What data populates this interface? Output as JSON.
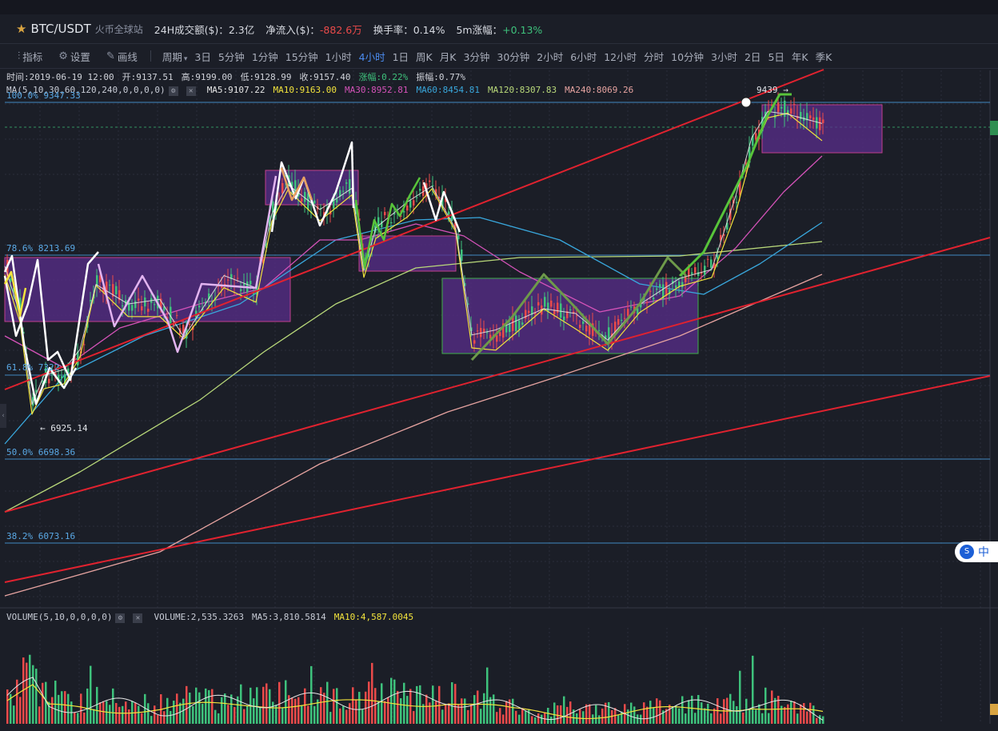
{
  "header": {
    "pair": "BTC/USDT",
    "exchange": "火币全球站",
    "volume_label": "24H成交额($)：",
    "volume_value": "2.3亿",
    "inflow_label": "净流入($)：",
    "inflow_value": "-882.6万",
    "turnover_label": "换手率：",
    "turnover_value": "0.14%",
    "change5m_label": "5m涨幅：",
    "change5m_value": "+0.13%"
  },
  "toolbar": {
    "indicator": "指标",
    "settings": "设置",
    "draw": "画线",
    "period_label": "周期",
    "periods": [
      "3日",
      "5分钟",
      "1分钟",
      "15分钟",
      "1小时",
      "4小时",
      "1日",
      "周K",
      "月K",
      "3分钟",
      "30分钟",
      "2小时",
      "6小时",
      "12小时",
      "分时",
      "10分钟",
      "3小时",
      "2日",
      "5日",
      "年K",
      "季K"
    ],
    "active_period": "4小时"
  },
  "info": {
    "time": "时间:2019-06-19 12:00",
    "open": "开:9137.51",
    "high": "高:9199.00",
    "low": "低:9128.99",
    "close": "收:9157.40",
    "change": "涨幅:0.22%",
    "amplitude": "振幅:0.77%"
  },
  "ma": {
    "label": "MA(5,10,30,60,120,240,0,0,0,0)",
    "ma5": "MA5:9107.22",
    "ma10": "MA10:9163.00",
    "ma30": "MA30:8952.81",
    "ma60": "MA60:8454.81",
    "ma120": "MA120:8307.83",
    "ma240": "MA240:8069.26"
  },
  "volume": {
    "label": "VOLUME(5,10,0,0,0,0)",
    "value": "VOLUME:2,535.3263",
    "ma5": "MA5:3,810.5814",
    "ma10": "MA10:4,587.0045"
  },
  "fib_levels": [
    {
      "label": "100.0% 9347.33"
    },
    {
      "label": "78.6% 8213.69"
    },
    {
      "label": "61.8% 7322"
    },
    {
      "label": "50.0% 6698.36"
    },
    {
      "label": "38.2% 6073.16"
    }
  ],
  "annotations": {
    "low": "← 6925.14",
    "high": "9439 →"
  },
  "lang_badge": "中",
  "colors": {
    "up": "#3ec27c",
    "down": "#ea4a4a",
    "ma5": "#e6e6e6",
    "ma10": "#f2e33c",
    "ma30": "#d452b8",
    "ma60": "#39a7dc",
    "ma120": "#b9d97a",
    "ma240": "#e6a3a0",
    "fib": "#4aa3e8",
    "trend": "#e0222f",
    "box": "#5a2d8c"
  }
}
